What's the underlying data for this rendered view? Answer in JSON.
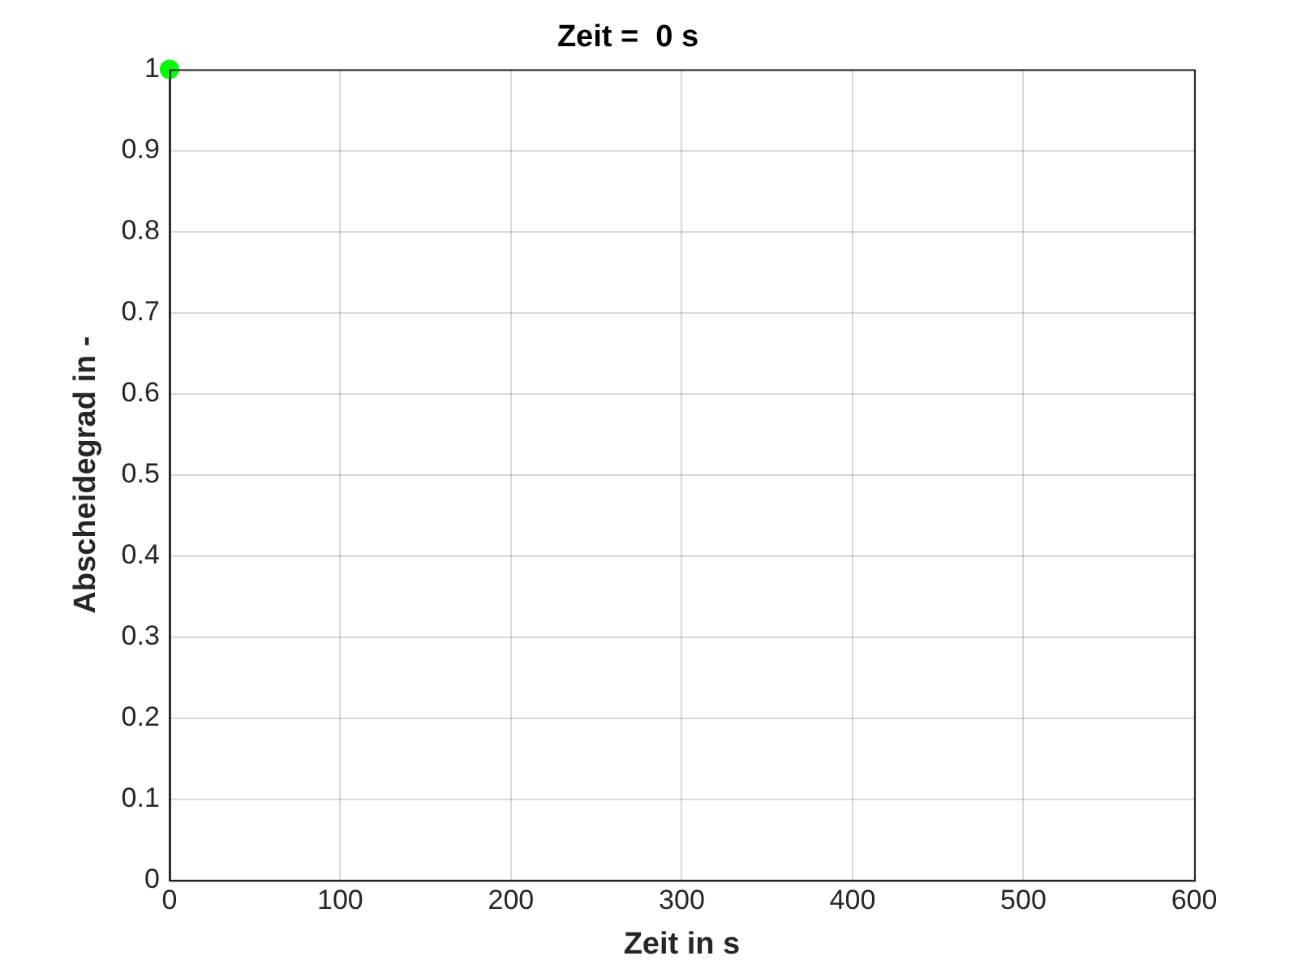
{
  "chart_data": {
    "type": "scatter",
    "title": "Zeit =  0 s",
    "xlabel": "Zeit in s",
    "ylabel": "Abscheidegrad in -",
    "x": [
      0
    ],
    "series": [
      {
        "color": "#00ff00",
        "values": [
          1
        ]
      }
    ],
    "xlim": [
      0,
      600
    ],
    "xticks": [
      0,
      100,
      200,
      300,
      400,
      500,
      600
    ],
    "ylim": [
      0,
      1
    ],
    "yticks": [
      0,
      0.1,
      0.2,
      0.3,
      0.4,
      0.5,
      0.6,
      0.7,
      0.8,
      0.9,
      1
    ],
    "grid": true,
    "marker": "circle",
    "legend": false
  }
}
